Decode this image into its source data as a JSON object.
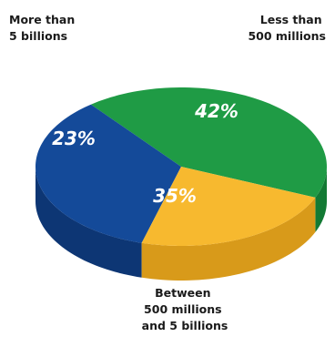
{
  "chart_data": {
    "type": "pie",
    "slices": [
      {
        "value": 42,
        "display": "42%",
        "label_lines": [
          "Less than",
          "500 millions"
        ],
        "color": "#1f9b45",
        "side_color": "#137a34"
      },
      {
        "value": 35,
        "display": "35%",
        "label_lines": [
          "Between",
          "500 millions",
          "and 5 billions"
        ],
        "color": "#144a99",
        "side_color": "#0d3674"
      },
      {
        "value": 23,
        "display": "23%",
        "label_lines": [
          "More than",
          "5 billions"
        ],
        "color": "#f7b92f",
        "side_color": "#d89a1a"
      }
    ]
  }
}
